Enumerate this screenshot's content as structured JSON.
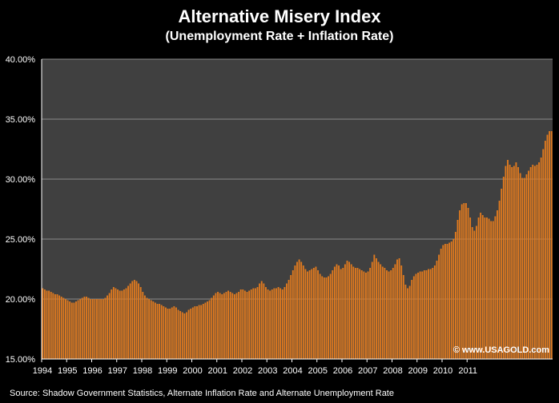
{
  "chart_data": {
    "type": "bar",
    "title": "Alternative Misery Index",
    "subtitle": "(Unemployment Rate + Inflation Rate)",
    "xlabel": "",
    "ylabel": "",
    "ylim": [
      15,
      40
    ],
    "y_ticks": [
      "15.00%",
      "20.00%",
      "25.00%",
      "30.00%",
      "35.00%",
      "40.00%"
    ],
    "x_ticks": [
      "1994",
      "1995",
      "1996",
      "1997",
      "1998",
      "1999",
      "2000",
      "2001",
      "2002",
      "2003",
      "2004",
      "2005",
      "2006",
      "2007",
      "2008",
      "2009",
      "2010",
      "2011"
    ],
    "x_start_year": 1994,
    "grid": true,
    "legend": "none",
    "watermark": "© www.USAGOLD.com",
    "source": "Source:  Shadow Government Statistics, Alternate Inflation Rate and Alternate Unemployment  Rate",
    "colors": {
      "background": "#000000",
      "plot_background": "#404040",
      "bar": "#e07a1f",
      "bar_edge": "#6a3a10",
      "grid": "#8a8a8a"
    },
    "series": [
      {
        "values": [
          20.9,
          20.8,
          20.7,
          20.7,
          20.6,
          20.5,
          20.4,
          20.4,
          20.3,
          20.2,
          20.1,
          20.0,
          19.9,
          19.8,
          19.7,
          19.7,
          19.8,
          19.9,
          20.0,
          20.1,
          20.2,
          20.2,
          20.1,
          20.0,
          20.0,
          20.0,
          20.0,
          20.0,
          20.0,
          20.0,
          20.1,
          20.3,
          20.5,
          20.8,
          21.0,
          20.9,
          20.8,
          20.7,
          20.7,
          20.8,
          20.9,
          21.1,
          21.3,
          21.5,
          21.6,
          21.5,
          21.3,
          21.0,
          20.6,
          20.3,
          20.1,
          20.0,
          19.9,
          19.8,
          19.7,
          19.6,
          19.6,
          19.5,
          19.4,
          19.3,
          19.2,
          19.2,
          19.3,
          19.4,
          19.3,
          19.1,
          19.0,
          18.9,
          18.8,
          18.9,
          19.1,
          19.2,
          19.3,
          19.4,
          19.4,
          19.5,
          19.5,
          19.6,
          19.7,
          19.8,
          19.9,
          20.1,
          20.3,
          20.5,
          20.6,
          20.5,
          20.4,
          20.5,
          20.6,
          20.7,
          20.6,
          20.5,
          20.4,
          20.5,
          20.6,
          20.8,
          20.8,
          20.7,
          20.6,
          20.7,
          20.8,
          20.9,
          20.9,
          21.0,
          21.3,
          21.5,
          21.3,
          21.0,
          20.8,
          20.7,
          20.8,
          20.9,
          20.9,
          21.0,
          20.9,
          20.8,
          21.0,
          21.3,
          21.6,
          22.0,
          22.4,
          22.8,
          23.1,
          23.3,
          23.1,
          22.8,
          22.5,
          22.3,
          22.4,
          22.5,
          22.6,
          22.7,
          22.4,
          22.1,
          21.9,
          21.8,
          21.8,
          21.9,
          22.1,
          22.4,
          22.7,
          22.9,
          22.8,
          22.5,
          22.6,
          22.9,
          23.2,
          23.1,
          22.9,
          22.7,
          22.6,
          22.6,
          22.5,
          22.4,
          22.3,
          22.2,
          22.3,
          22.6,
          23.1,
          23.7,
          23.4,
          23.1,
          22.9,
          22.7,
          22.6,
          22.4,
          22.3,
          22.4,
          22.6,
          22.9,
          23.3,
          23.4,
          22.8,
          22.0,
          21.2,
          20.9,
          21.1,
          21.6,
          21.9,
          22.1,
          22.2,
          22.3,
          22.3,
          22.4,
          22.4,
          22.5,
          22.5,
          22.6,
          22.8,
          23.2,
          23.7,
          24.2,
          24.5,
          24.6,
          24.6,
          24.7,
          24.8,
          25.0,
          25.6,
          26.6,
          27.4,
          27.9,
          28.0,
          28.0,
          27.6,
          26.8,
          26.0,
          25.7,
          26.1,
          26.8,
          27.2,
          27.0,
          26.8,
          26.8,
          26.7,
          26.5,
          26.5,
          26.9,
          27.4,
          28.2,
          29.2,
          30.2,
          31.1,
          31.6,
          31.2,
          31.0,
          31.1,
          31.4,
          31.0,
          30.5,
          30.1,
          30.1,
          30.4,
          30.7,
          31.0,
          31.2,
          31.1,
          31.2,
          31.4,
          31.8,
          32.5,
          33.2,
          33.7,
          34.0,
          34.0
        ]
      }
    ]
  }
}
